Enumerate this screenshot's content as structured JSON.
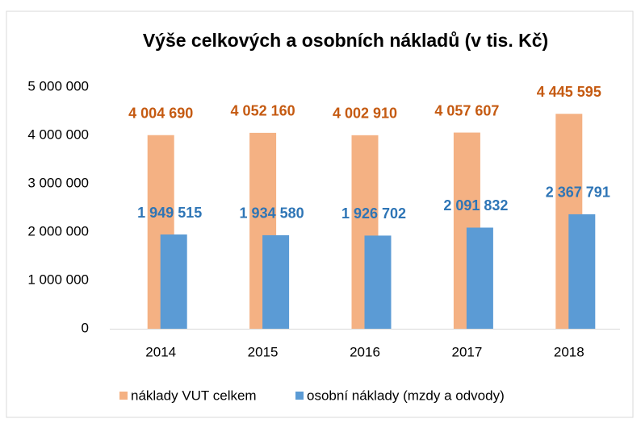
{
  "chart_data": {
    "type": "bar",
    "title": "Výše celkových a osobních nákladů (v tis. Kč)",
    "categories": [
      "2014",
      "2015",
      "2016",
      "2017",
      "2018"
    ],
    "series": [
      {
        "name": "náklady VUT celkem",
        "color": "#f4b183",
        "label_color": "#c55a11",
        "values": [
          4004690,
          4052160,
          4002910,
          4057607,
          4445595
        ],
        "value_labels": [
          "4 004 690",
          "4 052 160",
          "4 002 910",
          "4 057 607",
          "4 445 595"
        ]
      },
      {
        "name": "osobní náklady  (mzdy a odvody)",
        "color": "#5b9bd5",
        "label_color": "#2e75b6",
        "values": [
          1949515,
          1934580,
          1926702,
          2091832,
          2367791
        ],
        "value_labels": [
          "1 949 515",
          "1 934 580",
          "1 926 702",
          "2 091 832",
          "2 367 791"
        ]
      }
    ],
    "ylim": [
      0,
      5000000
    ],
    "yticks": [
      {
        "value": 0,
        "label": "0"
      },
      {
        "value": 1000000,
        "label": "1 000 000"
      },
      {
        "value": 2000000,
        "label": "2 000 000"
      },
      {
        "value": 3000000,
        "label": "3 000 000"
      },
      {
        "value": 4000000,
        "label": "4 000 000"
      },
      {
        "value": 5000000,
        "label": "5 000 000"
      }
    ],
    "grid": false,
    "legend": "bottom"
  }
}
